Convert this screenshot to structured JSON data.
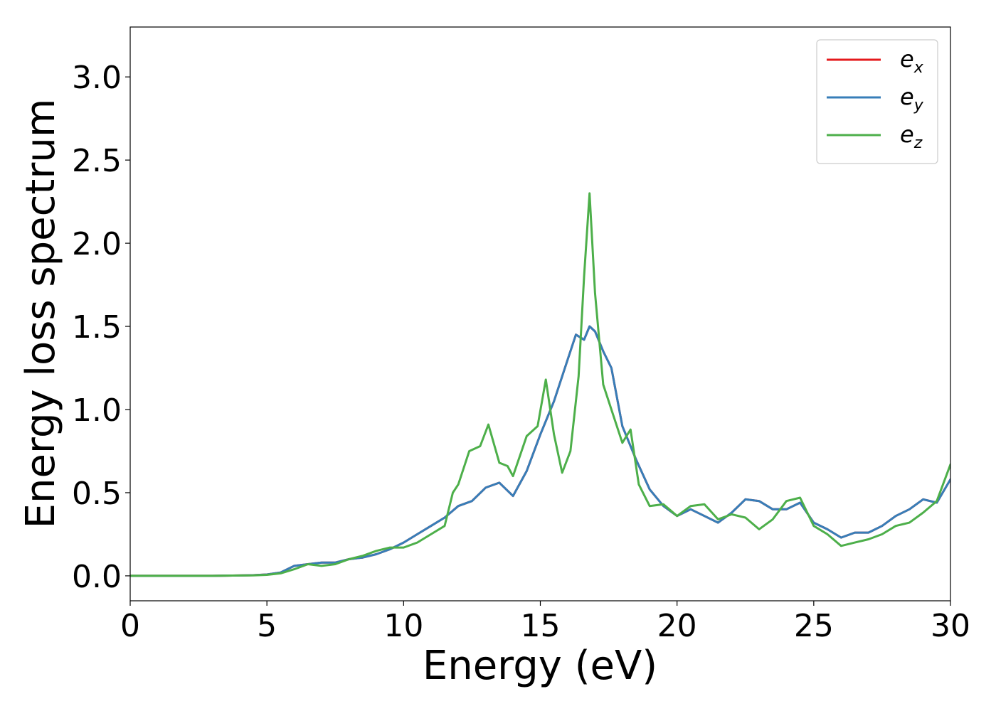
{
  "chart_data": {
    "type": "line",
    "title": "",
    "xlabel": "Energy (eV)",
    "ylabel": "Energy loss spectrum",
    "xlim": [
      0,
      30
    ],
    "ylim": [
      -0.15,
      3.3
    ],
    "x_ticks": [
      0,
      5,
      10,
      15,
      20,
      25,
      30
    ],
    "x_tick_labels": [
      "0",
      "5",
      "10",
      "15",
      "20",
      "25",
      "30"
    ],
    "y_ticks": [
      0.0,
      0.5,
      1.0,
      1.5,
      2.0,
      2.5,
      3.0
    ],
    "y_tick_labels": [
      "0.0",
      "0.5",
      "1.0",
      "1.5",
      "2.0",
      "2.5",
      "3.0"
    ],
    "grid": false,
    "legend_position": "top-right",
    "series": [
      {
        "name": "e_x",
        "legend_base": "e",
        "legend_sub": "x",
        "color": "#e41a1c",
        "x": [
          0,
          1,
          2,
          3,
          4,
          4.5,
          5,
          5.5,
          6,
          6.5,
          7,
          7.5,
          8,
          8.5,
          9,
          9.5,
          10,
          10.5,
          11,
          11.5,
          12,
          12.5,
          13,
          13.5,
          14,
          14.5,
          15,
          15.5,
          16,
          16.3,
          16.6,
          16.8,
          17,
          17.3,
          17.6,
          18,
          18.5,
          19,
          19.5,
          20,
          20.5,
          21,
          21.5,
          22,
          22.5,
          23,
          23.5,
          24,
          24.5,
          25,
          25.5,
          26,
          26.5,
          27,
          27.5,
          28,
          28.5,
          29,
          29.5,
          30
        ],
        "y": [
          0,
          0,
          0,
          0,
          0.002,
          0.004,
          0.008,
          0.02,
          0.06,
          0.07,
          0.08,
          0.08,
          0.1,
          0.11,
          0.13,
          0.16,
          0.2,
          0.25,
          0.3,
          0.35,
          0.42,
          0.45,
          0.53,
          0.56,
          0.48,
          0.63,
          0.85,
          1.05,
          1.3,
          1.45,
          1.42,
          1.5,
          1.47,
          1.35,
          1.25,
          0.9,
          0.7,
          0.52,
          0.42,
          0.36,
          0.4,
          0.36,
          0.32,
          0.38,
          0.46,
          0.45,
          0.4,
          0.4,
          0.44,
          0.32,
          0.28,
          0.23,
          0.26,
          0.26,
          0.3,
          0.36,
          0.4,
          0.46,
          0.44,
          0.58
        ]
      },
      {
        "name": "e_y",
        "legend_base": "e",
        "legend_sub": "y",
        "color": "#377eb8",
        "x": [
          0,
          1,
          2,
          3,
          4,
          4.5,
          5,
          5.5,
          6,
          6.5,
          7,
          7.5,
          8,
          8.5,
          9,
          9.5,
          10,
          10.5,
          11,
          11.5,
          12,
          12.5,
          13,
          13.5,
          14,
          14.5,
          15,
          15.5,
          16,
          16.3,
          16.6,
          16.8,
          17,
          17.3,
          17.6,
          18,
          18.5,
          19,
          19.5,
          20,
          20.5,
          21,
          21.5,
          22,
          22.5,
          23,
          23.5,
          24,
          24.5,
          25,
          25.5,
          26,
          26.5,
          27,
          27.5,
          28,
          28.5,
          29,
          29.5,
          30
        ],
        "y": [
          0,
          0,
          0,
          0,
          0.002,
          0.004,
          0.008,
          0.02,
          0.06,
          0.07,
          0.08,
          0.08,
          0.1,
          0.11,
          0.13,
          0.16,
          0.2,
          0.25,
          0.3,
          0.35,
          0.42,
          0.45,
          0.53,
          0.56,
          0.48,
          0.63,
          0.85,
          1.05,
          1.3,
          1.45,
          1.42,
          1.5,
          1.47,
          1.35,
          1.25,
          0.9,
          0.7,
          0.52,
          0.42,
          0.36,
          0.4,
          0.36,
          0.32,
          0.38,
          0.46,
          0.45,
          0.4,
          0.4,
          0.44,
          0.32,
          0.28,
          0.23,
          0.26,
          0.26,
          0.3,
          0.36,
          0.4,
          0.46,
          0.44,
          0.58
        ]
      },
      {
        "name": "e_z",
        "legend_base": "e",
        "legend_sub": "z",
        "color": "#4daf4a",
        "x": [
          0,
          1,
          2,
          3,
          4,
          4.5,
          5,
          5.5,
          6,
          6.5,
          7,
          7.5,
          8,
          8.5,
          9,
          9.5,
          10,
          10.5,
          11,
          11.5,
          11.8,
          12,
          12.4,
          12.8,
          13.1,
          13.5,
          13.8,
          14,
          14.5,
          14.9,
          15.2,
          15.5,
          15.8,
          16.1,
          16.4,
          16.6,
          16.8,
          17,
          17.3,
          17.6,
          18,
          18.3,
          18.6,
          19,
          19.5,
          20,
          20.5,
          21,
          21.5,
          22,
          22.5,
          23,
          23.5,
          24,
          24.5,
          25,
          25.5,
          26,
          26.5,
          27,
          27.5,
          28,
          28.5,
          29,
          29.5,
          30
        ],
        "y": [
          0,
          0,
          0,
          0,
          0.002,
          0.003,
          0.006,
          0.015,
          0.04,
          0.07,
          0.06,
          0.07,
          0.1,
          0.12,
          0.15,
          0.17,
          0.17,
          0.2,
          0.25,
          0.3,
          0.5,
          0.55,
          0.75,
          0.78,
          0.91,
          0.68,
          0.66,
          0.6,
          0.84,
          0.9,
          1.18,
          0.85,
          0.62,
          0.75,
          1.2,
          1.8,
          2.3,
          1.7,
          1.15,
          1.0,
          0.8,
          0.88,
          0.55,
          0.42,
          0.43,
          0.36,
          0.42,
          0.43,
          0.34,
          0.37,
          0.35,
          0.28,
          0.34,
          0.45,
          0.47,
          0.3,
          0.25,
          0.18,
          0.2,
          0.22,
          0.25,
          0.3,
          0.32,
          0.38,
          0.45,
          0.67
        ]
      }
    ]
  }
}
